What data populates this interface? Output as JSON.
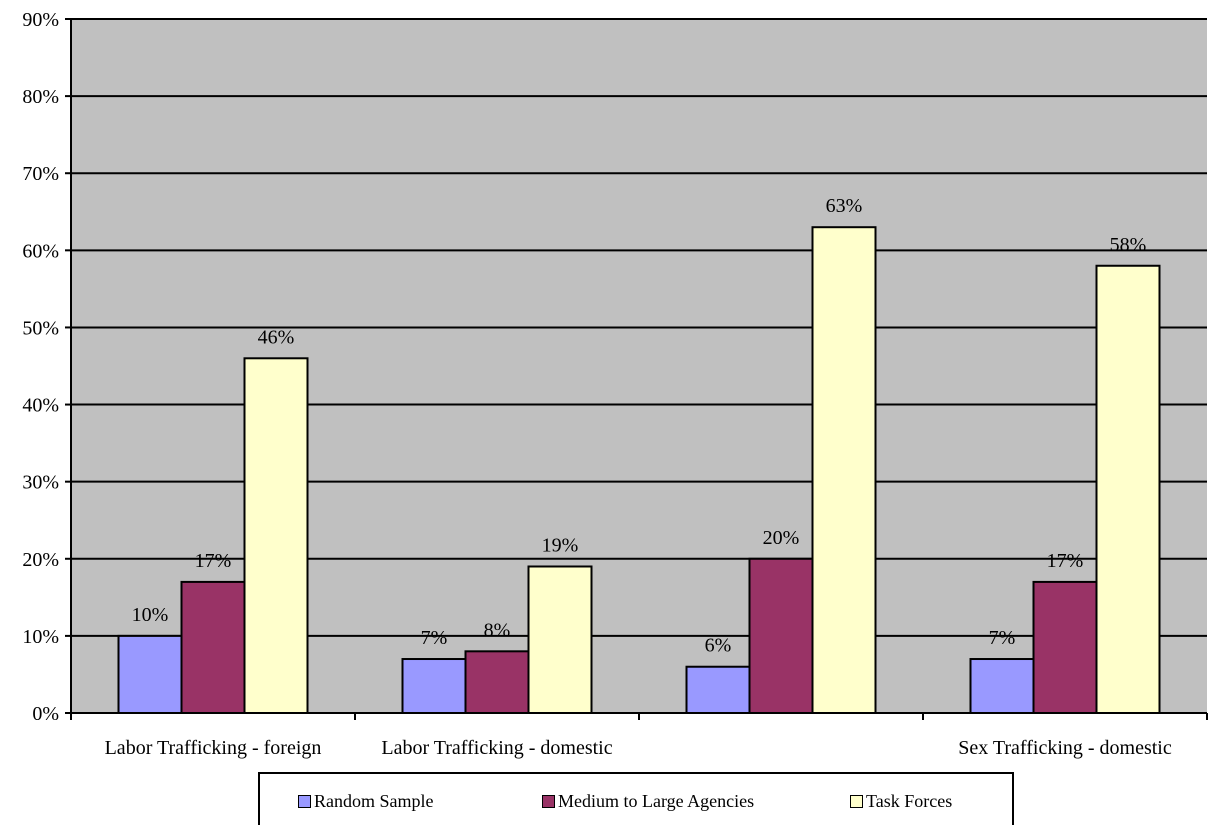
{
  "chart_data": {
    "type": "bar",
    "categories": [
      "Labor Trafficking - foreign",
      "Labor Trafficking - domestic",
      "",
      "Sex Trafficking - domestic"
    ],
    "series": [
      {
        "name": "Random Sample",
        "values": [
          10,
          7,
          6,
          7
        ],
        "labels": [
          "10%",
          "7%",
          "6%",
          "7%"
        ],
        "color": "#9999ff"
      },
      {
        "name": "Medium to Large Agencies",
        "values": [
          17,
          8,
          20,
          17
        ],
        "labels": [
          "17%",
          "8%",
          "20%",
          "17%"
        ],
        "color": "#993366"
      },
      {
        "name": "Task Forces",
        "values": [
          46,
          19,
          63,
          58
        ],
        "labels": [
          "46%",
          "19%",
          "63%",
          "58%"
        ],
        "color": "#ffffcc"
      }
    ],
    "ylim": [
      0,
      90
    ],
    "yticks": [
      0,
      10,
      20,
      30,
      40,
      50,
      60,
      70,
      80,
      90
    ],
    "ytick_labels": [
      "0%",
      "10%",
      "20%",
      "30%",
      "40%",
      "50%",
      "60%",
      "70%",
      "80%",
      "90%"
    ],
    "grid": true,
    "plot_background": "#c0c0c0",
    "legend_position": "bottom"
  }
}
